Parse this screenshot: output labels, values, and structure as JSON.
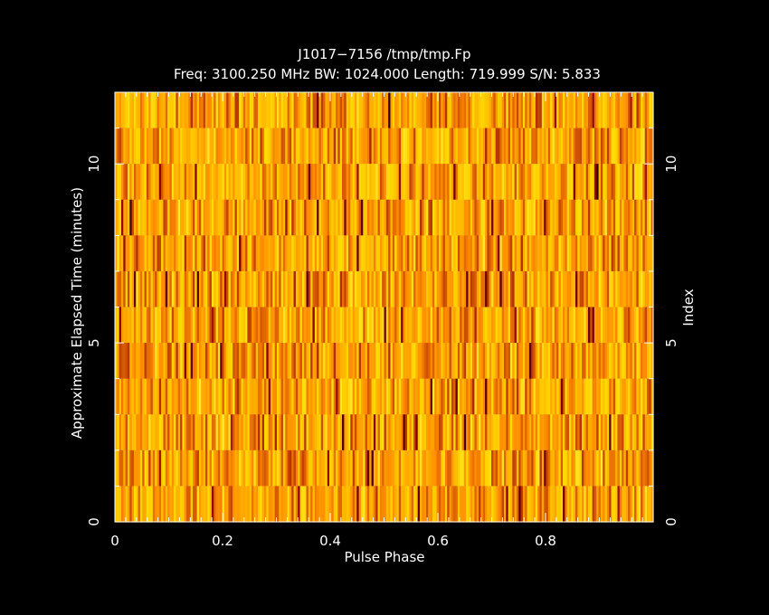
{
  "chart_data": {
    "type": "heatmap",
    "title": "J1017−7156 /tmp/tmp.Fp",
    "subtitle": "Freq: 3100.250 MHz BW: 1024.000 Length: 719.999 S/N: 5.833",
    "xlabel": "Pulse Phase",
    "ylabel": "Approximate Elapsed Time (minutes)",
    "y2label": "Index",
    "xlim": [
      0,
      1
    ],
    "ylim": [
      0,
      12
    ],
    "y2lim": [
      0,
      12
    ],
    "x_ticks": [
      "0",
      "0.2",
      "0.4",
      "0.6",
      "0.8"
    ],
    "x_tick_values": [
      0,
      0.2,
      0.4,
      0.6,
      0.8
    ],
    "y_ticks": [
      "0",
      "5",
      "10"
    ],
    "y_tick_values": [
      0,
      5,
      10
    ],
    "y2_ticks": [
      "0",
      "5",
      "10"
    ],
    "y2_tick_values": [
      0,
      5,
      10
    ],
    "n_subintegrations": 12,
    "n_phase_bins": 256,
    "colormap": [
      "#000000",
      "#8b0000",
      "#ff8c00",
      "#ffd700",
      "#ffff80"
    ],
    "background": "#000000",
    "frame_color": "#ffffff"
  }
}
